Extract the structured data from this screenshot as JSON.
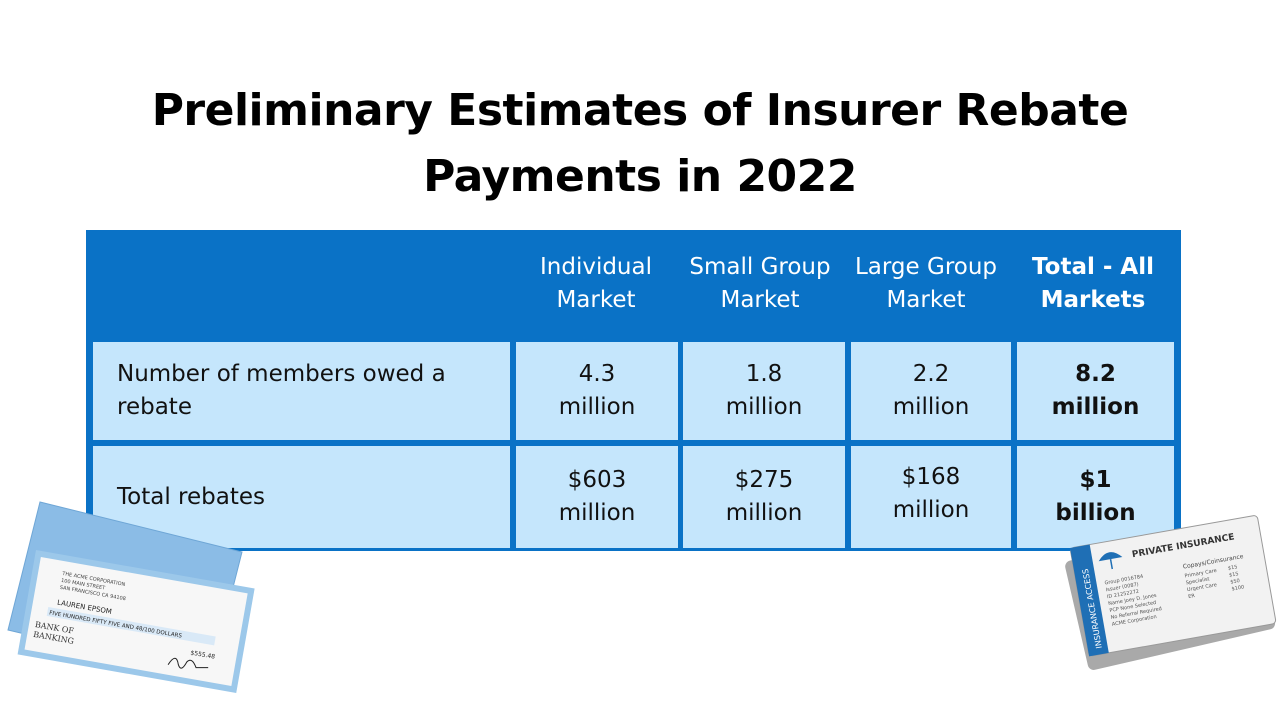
{
  "title": {
    "line1": "Preliminary Estimates of Insurer Rebate",
    "line2": "Payments in 2022"
  },
  "chart_data": {
    "type": "table",
    "columns": [
      "",
      "Individual Market",
      "Small Group Market",
      "Large Group Market",
      "Total - All Markets"
    ],
    "header": {
      "individual": [
        "Individual",
        "Market"
      ],
      "small": [
        "Small Group",
        "Market"
      ],
      "large": [
        "Large Group",
        "Market"
      ],
      "total": [
        "Total - All",
        "Markets"
      ]
    },
    "rows": [
      {
        "label": [
          "Number of members owed a",
          "rebate"
        ],
        "values": [
          [
            "4.3",
            "million"
          ],
          [
            "1.8",
            "million"
          ],
          [
            "2.2",
            "million"
          ],
          [
            "8.2",
            "million"
          ]
        ]
      },
      {
        "label": [
          "Total rebates"
        ],
        "values": [
          [
            "$603",
            "million"
          ],
          [
            "$275",
            "million"
          ],
          [
            "$168",
            "million"
          ],
          [
            "$1",
            "billion"
          ]
        ]
      }
    ]
  },
  "check": {
    "company": [
      "THE ACME CORPORATION",
      "100 MAIN STREET",
      "SAN FRANCISCO CA 94108"
    ],
    "payee": "LAUREN EPSOM",
    "amount_words": "FIVE HUNDRED FIFTY FIVE AND 48/100 DOLLARS",
    "amount": "$555.48",
    "bank": [
      "BANK OF",
      "BANKING"
    ],
    "colors": {
      "envelope": "#8bbce6",
      "check_border": "#9cc8ea",
      "paper": "#f7f7f7"
    }
  },
  "insurance_card": {
    "title": "PRIVATE INSURANCE",
    "side_label": "INSURANCE ACCESS",
    "info": [
      "Group 0016784",
      "Issuer (0087)",
      "ID 21252272",
      "Name Joey D. Jones",
      "PCP None Selected",
      "No Referral Required",
      "ACME Corporation"
    ],
    "copays_title": "Copays/Coinsurance",
    "copays": [
      {
        "label": "Primary Care",
        "value": "$15"
      },
      {
        "label": "Specialist",
        "value": "$15"
      },
      {
        "label": "Urgent Care",
        "value": "$50"
      },
      {
        "label": "ER",
        "value": "$100"
      }
    ],
    "colors": {
      "stripe": "#1f6fb5",
      "card": "#f2f2f2",
      "back": "#a9a9a9"
    }
  }
}
